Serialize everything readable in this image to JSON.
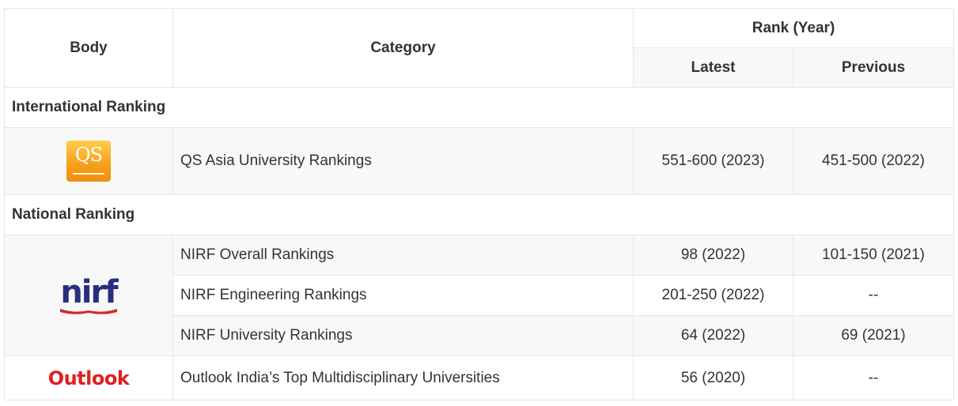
{
  "table": {
    "headers": {
      "body": "Body",
      "category": "Category",
      "rank_year": "Rank (Year)",
      "latest": "Latest",
      "previous": "Previous"
    },
    "sections": {
      "international": "International Ranking",
      "national": "National Ranking"
    },
    "logos": {
      "qs": "QS",
      "nirf": "nirf",
      "outlook": "Outlook"
    },
    "rows": [
      {
        "category": "QS Asia University Rankings",
        "latest": "551-600 (2023)",
        "previous": "451-500 (2022)"
      },
      {
        "category": "NIRF Overall Rankings",
        "latest": "98 (2022)",
        "previous": "101-150 (2021)"
      },
      {
        "category": "NIRF Engineering Rankings",
        "latest": "201-250 (2022)",
        "previous": "--"
      },
      {
        "category": "NIRF University Rankings",
        "latest": "64 (2022)",
        "previous": "69 (2021)"
      },
      {
        "category": "Outlook India’s Top Multidisciplinary Universities",
        "latest": "56 (2020)",
        "previous": "--"
      }
    ]
  },
  "colors": {
    "border": "#e6e6e6",
    "shade": "#f8f8f8",
    "qs_orange": "#f6a21c",
    "nirf_blue": "#2a2f7d",
    "outlook_red": "#e02020"
  }
}
